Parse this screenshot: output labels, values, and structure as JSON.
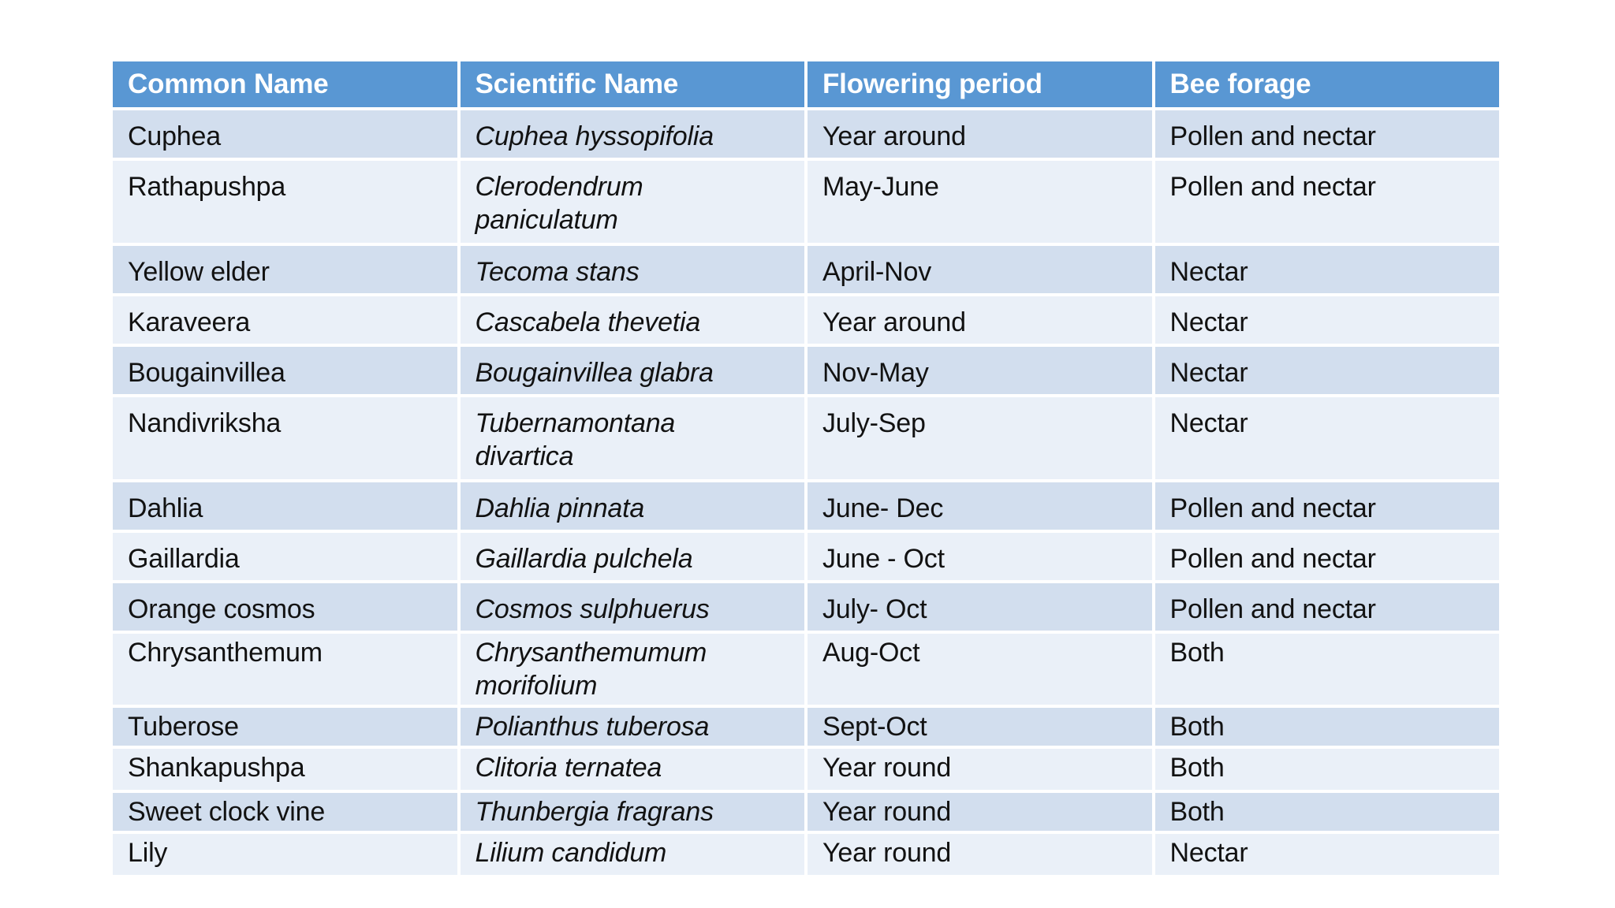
{
  "page": {
    "background": "#ffffff"
  },
  "colors": {
    "header_bg": "#5997d3",
    "header_text": "#ffffff",
    "row_dark": "#d2deee",
    "row_light": "#eaf0f8",
    "body_text": "#121212"
  },
  "table": {
    "headers": [
      "Common Name",
      "Scientific Name",
      "Flowering period",
      "Bee forage"
    ],
    "rows": [
      {
        "common": "Cuphea",
        "scientific": "Cuphea hyssopifolia",
        "flowering": "Year around",
        "forage": "Pollen and nectar"
      },
      {
        "common": "Rathapushpa",
        "scientific": "Clerodendrum\npaniculatum",
        "flowering": "May-June",
        "forage": "Pollen and nectar"
      },
      {
        "common": "Yellow elder",
        "scientific": "Tecoma stans",
        "flowering": "April-Nov",
        "forage": "Nectar"
      },
      {
        "common": "Karaveera",
        "scientific": "Cascabela thevetia",
        "flowering": "Year around",
        "forage": "Nectar"
      },
      {
        "common": "Bougainvillea",
        "scientific": "Bougainvillea  glabra",
        "flowering": "Nov-May",
        "forage": "Nectar"
      },
      {
        "common": "Nandivriksha",
        "scientific": "Tubernamontana\ndivartica",
        "flowering": "July-Sep",
        "forage": "Nectar"
      },
      {
        "common": "Dahlia",
        "scientific": "Dahlia pinnata",
        "flowering": "June- Dec",
        "forage": "Pollen and nectar"
      },
      {
        "common": "Gaillardia",
        "scientific": "Gaillardia pulchela",
        "flowering": "June - Oct",
        "forage": "Pollen and nectar"
      },
      {
        "common": "Orange cosmos",
        "scientific": "Cosmos sulphuerus",
        "flowering": "July- Oct",
        "forage": "Pollen and nectar"
      },
      {
        "common": "Chrysanthemum",
        "scientific": "Chrysanthemumum\nmorifolium",
        "flowering": "Aug-Oct",
        "forage": "Both"
      },
      {
        "common": "Tuberose",
        "scientific": "Polianthus tuberosa",
        "flowering": "Sept-Oct",
        "forage": "Both"
      },
      {
        "common": "Shankapushpa",
        "scientific": "Clitoria ternatea",
        "flowering": "Year round",
        "forage": "Both"
      },
      {
        "common": "Sweet clock vine",
        "scientific": "Thunbergia fragrans",
        "flowering": "Year round",
        "forage": "Both"
      },
      {
        "common": "Lily",
        "scientific": "Lilium candidum",
        "flowering": "Year round",
        "forage": "Nectar"
      }
    ]
  }
}
